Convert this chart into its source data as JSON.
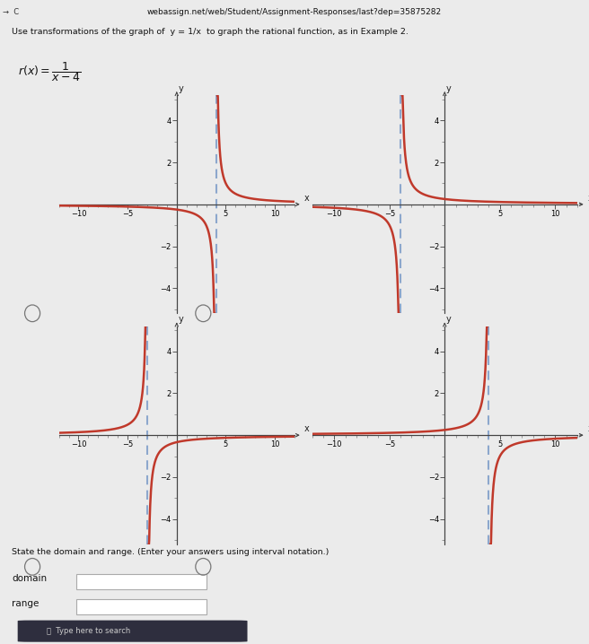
{
  "background_color": "#ebebeb",
  "curve_color": "#c0392b",
  "asymptote_color": "#7b9bc8",
  "axis_color": "#444444",
  "xlim": [
    -12,
    12
  ],
  "ylim": [
    -5.2,
    5.2
  ],
  "xticks": [
    -10,
    -5,
    5,
    10
  ],
  "yticks": [
    -4,
    -2,
    2,
    4
  ],
  "graphs": [
    {
      "asymptote": 4,
      "flip_y": false,
      "flip_x": false
    },
    {
      "asymptote": -4,
      "flip_y": false,
      "flip_x": false
    },
    {
      "asymptote": -3,
      "flip_y": false,
      "flip_x": true
    },
    {
      "asymptote": 4,
      "flip_y": false,
      "flip_x": true
    }
  ],
  "url_text": "webassign.net/web/Student/Assignment-Responses/last?dep=35875282",
  "title_text": "Use transformations of the graph of  y = 1/x  to graph the rational function, as in Example 2.",
  "bottom_text": "State the domain and range. (Enter your answers using interval notation.)",
  "domain_label": "domain",
  "range_label": "range"
}
